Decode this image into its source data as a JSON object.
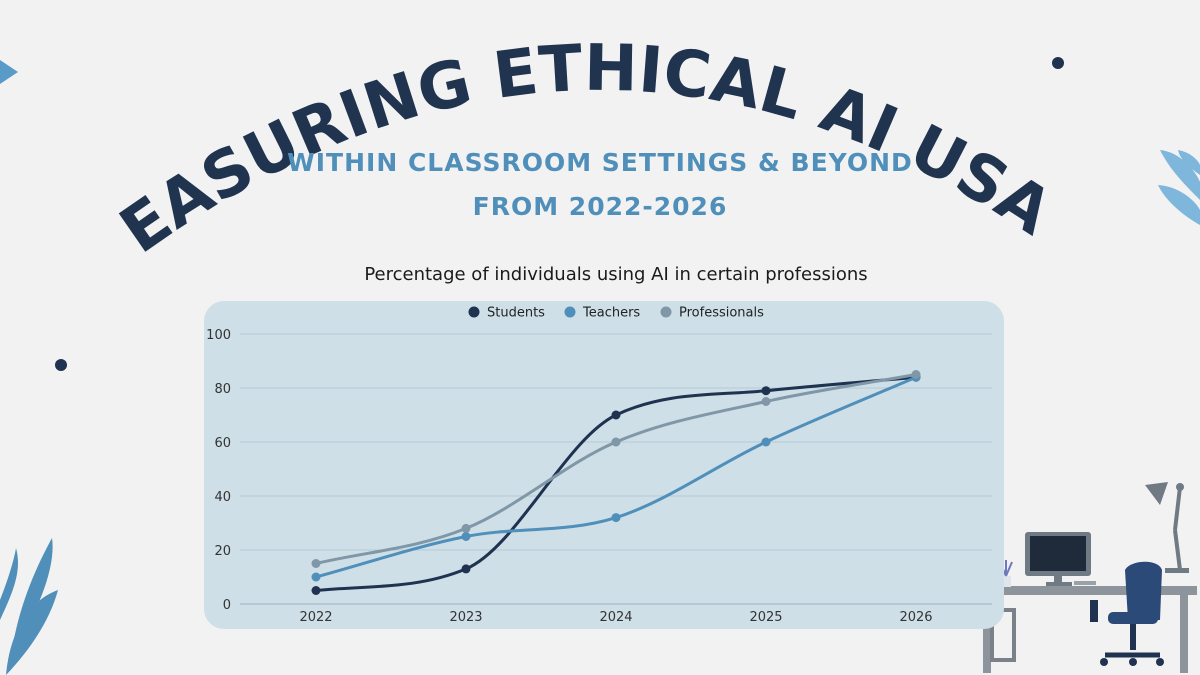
{
  "header": {
    "title": "MEASURING ETHICAL AI USAGE",
    "subtitle_line1": "WITHIN CLASSROOM SETTINGS & BEYOND",
    "subtitle_line2": "FROM 2022-2026"
  },
  "colors": {
    "title": "#20344f",
    "subtitle": "#4f8fba",
    "panel": "#cfdfe8",
    "students": "#1f3250",
    "teachers": "#4f8fba",
    "professionals": "#7f97a6",
    "leaf": "#5a9ac6"
  },
  "decor": {
    "icons": [
      "triangle-icon",
      "dot-icon",
      "leaf-icon",
      "desk-icon",
      "monitor-icon",
      "lamp-icon",
      "chair-icon",
      "plant-icon"
    ]
  },
  "chart_data": {
    "type": "line",
    "title": "Percentage of individuals using AI in certain professions",
    "categories": [
      "2022",
      "2023",
      "2024",
      "2025",
      "2026"
    ],
    "series": [
      {
        "name": "Students",
        "values": [
          5,
          13,
          70,
          79,
          84
        ]
      },
      {
        "name": "Teachers",
        "values": [
          10,
          25,
          32,
          60,
          84
        ]
      },
      {
        "name": "Professionals",
        "values": [
          15,
          28,
          60,
          75,
          85
        ]
      }
    ],
    "ylim": [
      0,
      100
    ],
    "yticks": [
      "0",
      "20",
      "40",
      "60",
      "80",
      "100"
    ],
    "grid": true,
    "legend": "top-center",
    "smooth": true
  }
}
